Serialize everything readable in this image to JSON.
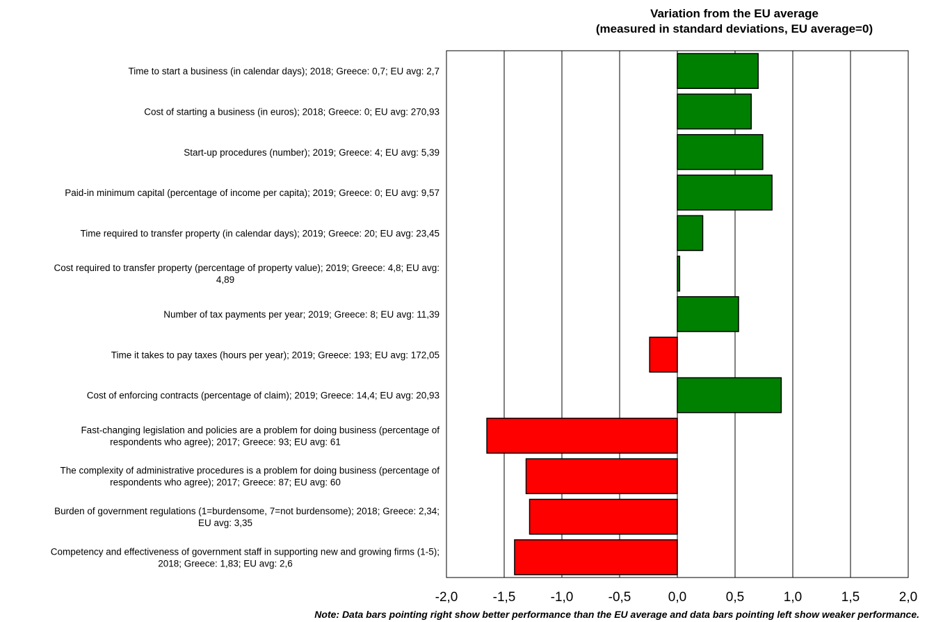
{
  "chart_data": {
    "type": "bar",
    "orientation": "horizontal",
    "title": "Variation from the EU average",
    "subtitle": "(measured in standard deviations, EU average=0)",
    "note": "Note: Data bars pointing right show better performance than the EU average and data bars pointing left show weaker performance.",
    "xlim": [
      -2.0,
      2.0
    ],
    "x_ticks": [
      -2.0,
      -1.5,
      -1.0,
      -0.5,
      0.0,
      0.5,
      1.0,
      1.5,
      2.0
    ],
    "x_tick_labels": [
      "-2,0",
      "-1,5",
      "-1,0",
      "-0,5",
      "0,0",
      "0,5",
      "1,0",
      "1,5",
      "2,0"
    ],
    "grid": "vertical",
    "colors": {
      "positive": "#008000",
      "negative": "#ff0000",
      "border": "#000000"
    },
    "categories": [
      [
        "Time to start a business (in calendar days); 2018; Greece: 0,7; EU avg: 2,7"
      ],
      [
        "Cost of starting a business (in euros); 2018; Greece: 0; EU avg: 270,93"
      ],
      [
        "Start-up procedures (number); 2019; Greece: 4; EU avg: 5,39"
      ],
      [
        "Paid-in minimum capital (percentage of income per capita); 2019; Greece: 0; EU avg: 9,57"
      ],
      [
        "Time required to transfer property (in calendar days); 2019; Greece: 20; EU avg: 23,45"
      ],
      [
        "Cost required to transfer property (percentage of property value); 2019; Greece: 4,8; EU avg:",
        "4,89"
      ],
      [
        "Number of tax payments per year; 2019; Greece: 8; EU avg: 11,39"
      ],
      [
        "Time it takes to pay taxes (hours per year); 2019; Greece: 193; EU avg: 172,05"
      ],
      [
        "Cost of enforcing contracts (percentage of claim); 2019; Greece: 14,4; EU avg: 20,93"
      ],
      [
        "Fast-changing legislation and policies are a problem for doing business (percentage of",
        "respondents who agree); 2017; Greece: 93; EU avg: 61"
      ],
      [
        "The complexity of administrative procedures is a problem for doing business (percentage of",
        "respondents who agree); 2017; Greece: 87; EU avg: 60"
      ],
      [
        "Burden of government regulations (1=burdensome, 7=not burdensome); 2018; Greece: 2,34;",
        "EU avg: 3,35"
      ],
      [
        "Competency and effectiveness of government staff in supporting new and growing firms (1-5);",
        "2018; Greece: 1,83; EU avg: 2,6"
      ]
    ],
    "values": [
      0.7,
      0.64,
      0.74,
      0.82,
      0.22,
      0.02,
      0.53,
      -0.24,
      0.9,
      -1.65,
      -1.31,
      -1.28,
      -1.41
    ]
  }
}
